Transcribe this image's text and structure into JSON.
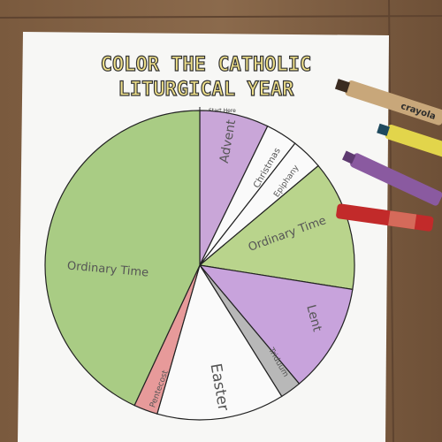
{
  "title": [
    "COLOR THE CATHOLIC",
    "LITURGICAL YEAR"
  ],
  "start_label": "Start Here",
  "segments": [
    {
      "label": "Advent"
    },
    {
      "label": "Christmas"
    },
    {
      "label": "Epiphany"
    },
    {
      "label": "Ordinary Time"
    },
    {
      "label": "Lent"
    },
    {
      "label": "Triduum"
    },
    {
      "label": "Easter"
    },
    {
      "label": "Pentecost"
    },
    {
      "label": "Ordinary Time"
    }
  ],
  "crayon_brand": "crayola"
}
